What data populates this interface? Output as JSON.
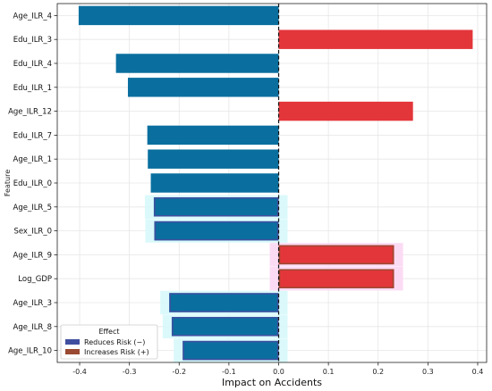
{
  "chart_data": {
    "type": "bar",
    "orientation": "horizontal",
    "title": "",
    "xlabel": "Impact on Accidents",
    "ylabel": "Feature",
    "xlim": [
      -0.445,
      0.418
    ],
    "xticks": [
      -0.4,
      -0.3,
      -0.2,
      -0.1,
      0.0,
      0.1,
      0.2,
      0.3,
      0.4
    ],
    "grid": true,
    "zero_line": "dashed",
    "categories": [
      "Age_ILR_4",
      "Edu_ILR_3",
      "Edu_ILR_4",
      "Edu_ILR_1",
      "Age_ILR_12",
      "Edu_ILR_7",
      "Age_ILR_1",
      "Edu_ILR_0",
      "Age_ILR_5",
      "Sex_ILR_0",
      "Age_ILR_9",
      "Log_GDP",
      "Age_ILR_3",
      "Age_ILR_8",
      "Age_ILR_10"
    ],
    "values": [
      -0.402,
      0.39,
      -0.327,
      -0.303,
      0.27,
      -0.264,
      -0.263,
      -0.257,
      -0.251,
      -0.25,
      0.232,
      0.232,
      -0.22,
      -0.215,
      -0.193
    ],
    "highlighted": [
      false,
      false,
      false,
      false,
      false,
      false,
      false,
      false,
      true,
      true,
      true,
      true,
      true,
      true,
      true
    ],
    "legend": {
      "title": "Effect",
      "position": "lower-left",
      "entries": [
        {
          "label": "Reduces Risk (−)",
          "color": "#3f4fa0"
        },
        {
          "label": "Increases Risk (+)",
          "color": "#9a4a32"
        }
      ]
    },
    "colors": {
      "negative": "#0a6f9f",
      "positive": "#e3363b",
      "negative_halo": "#d7f8fb",
      "positive_halo": "#fbd7f3"
    }
  }
}
